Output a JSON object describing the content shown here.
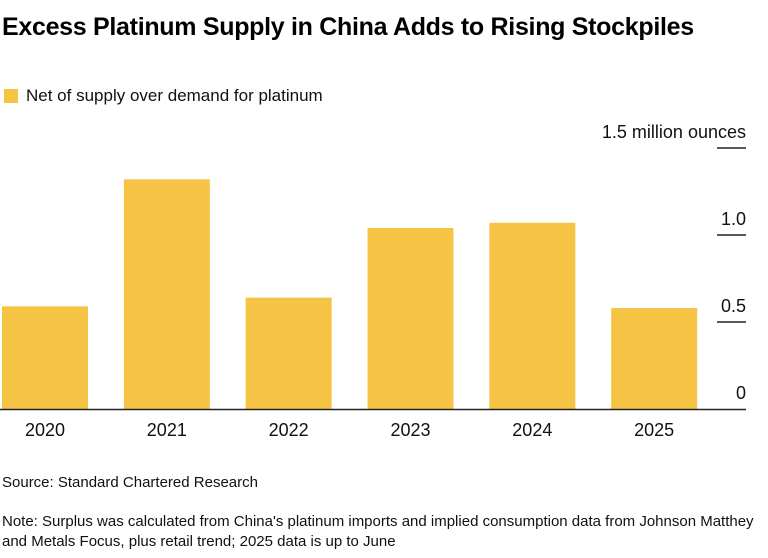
{
  "header": {
    "title": "Excess Platinum Supply in China Adds to Rising Stockpiles"
  },
  "legend": {
    "label": "Net of supply over demand for platinum",
    "color": "#F5C444"
  },
  "footer": {
    "source": "Source: Standard Chartered Research",
    "note": "Note: Surplus was calculated from China's platinum imports and implied consumption data from Johnson Matthey and Metals Focus, plus retail trend; 2025 data is up to June"
  },
  "chart_data": {
    "type": "bar",
    "title": "Excess Platinum Supply in China Adds to Rising Stockpiles",
    "categories": [
      "2020",
      "2021",
      "2022",
      "2023",
      "2024",
      "2025"
    ],
    "series": [
      {
        "name": "Net of supply over demand for platinum",
        "color": "#F5C444",
        "values": [
          0.59,
          1.32,
          0.64,
          1.04,
          1.07,
          0.58
        ]
      }
    ],
    "xlabel": "",
    "ylabel": "million ounces",
    "ylim": [
      0,
      1.5
    ],
    "yticks": [
      0,
      0.5,
      1.0,
      1.5
    ],
    "ytick_labels": [
      "0",
      "0.5",
      "1.0",
      "1.5 million ounces"
    ],
    "y_axis_side": "right",
    "grid": false,
    "legend_position": "top-left"
  }
}
